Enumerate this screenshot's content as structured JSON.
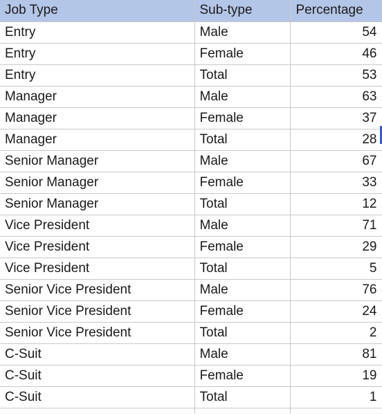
{
  "table": {
    "headers": [
      "Job Type",
      "Sub-type",
      "Percentage"
    ],
    "rows": [
      [
        "Entry",
        "Male",
        "54"
      ],
      [
        "Entry",
        "Female",
        "46"
      ],
      [
        "Entry",
        "Total",
        "53"
      ],
      [
        "Manager",
        "Male",
        "63"
      ],
      [
        "Manager",
        "Female",
        "37"
      ],
      [
        "Manager",
        "Total",
        "28"
      ],
      [
        "Senior Manager",
        "Male",
        "67"
      ],
      [
        "Senior Manager",
        "Female",
        "33"
      ],
      [
        "Senior Manager",
        "Total",
        "12"
      ],
      [
        "Vice President",
        "Male",
        "71"
      ],
      [
        "Vice President",
        "Female",
        "29"
      ],
      [
        "Vice President",
        "Total",
        "5"
      ],
      [
        "Senior Vice President",
        "Male",
        "76"
      ],
      [
        "Senior Vice President",
        "Female",
        "24"
      ],
      [
        "Senior Vice President",
        "Total",
        "2"
      ],
      [
        "C-Suit",
        "Male",
        "81"
      ],
      [
        "C-Suit",
        "Female",
        "19"
      ],
      [
        "C-Suit",
        "Total",
        "1"
      ],
      [
        "",
        "",
        ""
      ]
    ]
  },
  "colors": {
    "header_background": "#b4c6e7",
    "gridline": "#c8c8c8",
    "selection_accent": "#2e5bd6"
  }
}
